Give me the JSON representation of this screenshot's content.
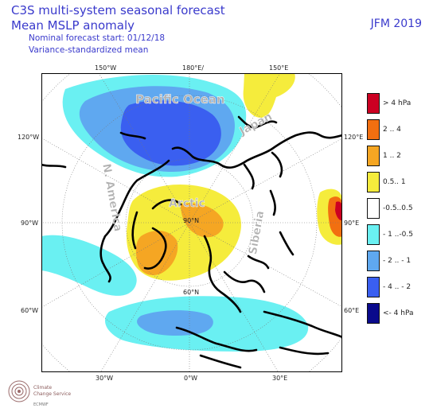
{
  "header": {
    "title_line1": "C3S multi-system seasonal forecast",
    "title_line2": "Mean MSLP anomaly",
    "subtitle_line1": "Nominal forecast start: 01/12/18",
    "subtitle_line2": "Variance-standardized mean",
    "season": "JFM 2019"
  },
  "map": {
    "projection": "north-polar-stereographic",
    "lon_labels": {
      "top_left": "150°W",
      "top_center": "180°E/",
      "top_right": "150°E",
      "bottom_left": "30°W",
      "bottom_center": "0°W",
      "bottom_right": "30°E",
      "left_upper": "120°W",
      "left_middle": "90°W",
      "left_lower": "60°W",
      "right_upper": "120°E",
      "right_middle": "90°E",
      "right_lower": "60°E"
    },
    "lat_labels": {
      "pole": "90°N",
      "lat60": "60°N"
    },
    "region_labels": {
      "pacific": "Pacific Ocean",
      "japan": "Japan",
      "namerica": "N. America",
      "arctic": "Arctic",
      "siberia": "Siberia"
    }
  },
  "legend": [
    {
      "label": "> 4 hPa",
      "color": "#cc0022"
    },
    {
      "label": "2 .. 4",
      "color": "#f26f10"
    },
    {
      "label": "1 .. 2",
      "color": "#f5a623"
    },
    {
      "label": "0.5.. 1",
      "color": "#f5ec3c"
    },
    {
      "label": "-0.5..0.5",
      "color": "#ffffff"
    },
    {
      "label": "- 1 ..-0.5",
      "color": "#6af0f2"
    },
    {
      "label": "- 2 .. - 1",
      "color": "#5fa8f0"
    },
    {
      "label": "- 4 .. - 2",
      "color": "#3a5ff0"
    },
    {
      "label": "<- 4 hPa",
      "color": "#0a0a8c"
    }
  ],
  "logo": {
    "line1": "Climate",
    "line2": "Change Service",
    "line3": "ECMWF"
  }
}
